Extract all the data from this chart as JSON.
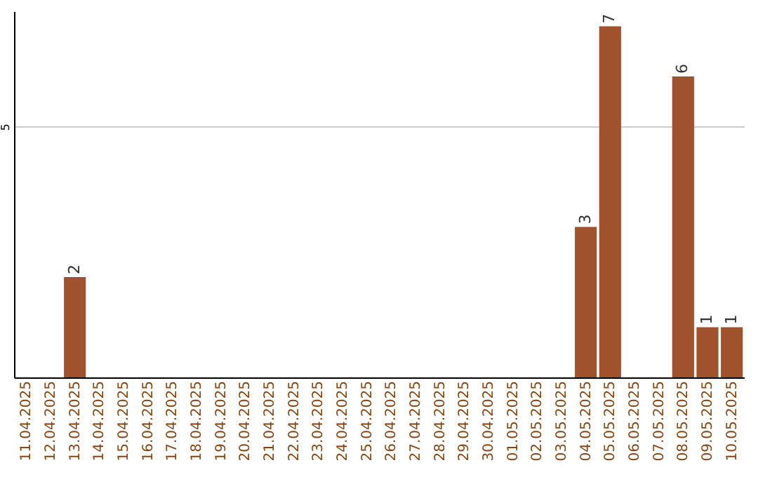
{
  "chart_data": {
    "type": "bar",
    "categories": [
      "11.04.2025",
      "12.04.2025",
      "13.04.2025",
      "14.04.2025",
      "15.04.2025",
      "16.04.2025",
      "17.04.2025",
      "18.04.2025",
      "19.04.2025",
      "20.04.2025",
      "21.04.2025",
      "22.04.2025",
      "23.04.2025",
      "24.04.2025",
      "25.04.2025",
      "26.04.2025",
      "27.04.2025",
      "28.04.2025",
      "29.04.2025",
      "30.04.2025",
      "01.05.2025",
      "02.05.2025",
      "03.05.2025",
      "04.05.2025",
      "05.05.2025",
      "06.05.2025",
      "07.05.2025",
      "08.05.2025",
      "09.05.2025",
      "10.05.2025"
    ],
    "values": [
      0,
      0,
      2,
      0,
      0,
      0,
      0,
      0,
      0,
      0,
      0,
      0,
      0,
      0,
      0,
      0,
      0,
      0,
      0,
      0,
      0,
      0,
      0,
      3,
      7,
      0,
      0,
      6,
      1,
      1
    ],
    "value_labels": [
      null,
      null,
      "2",
      null,
      null,
      null,
      null,
      null,
      null,
      null,
      null,
      null,
      null,
      null,
      null,
      null,
      null,
      null,
      null,
      null,
      null,
      null,
      null,
      "3",
      "7",
      null,
      null,
      "6",
      "1",
      "1"
    ],
    "color": "#a0522d",
    "ylim": [
      0,
      7.3
    ],
    "yticks": [
      5
    ],
    "grid": "y"
  }
}
